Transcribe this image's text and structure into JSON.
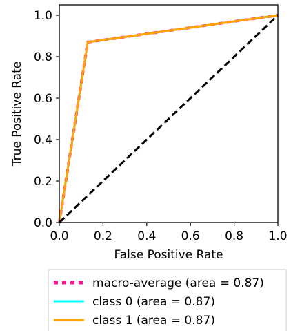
{
  "chart_data": {
    "type": "line",
    "title": "",
    "xlabel": "False Positive Rate",
    "ylabel": "True Positive Rate",
    "xlim": [
      0.0,
      1.0
    ],
    "ylim": [
      0.0,
      1.05
    ],
    "xticks": [
      0.0,
      0.2,
      0.4,
      0.6,
      0.8,
      1.0
    ],
    "yticks": [
      0.0,
      0.2,
      0.4,
      0.6,
      0.8,
      1.0
    ],
    "xtick_labels": [
      "0.0",
      "0.2",
      "0.4",
      "0.6",
      "0.8",
      "1.0"
    ],
    "ytick_labels": [
      "0.0",
      "0.2",
      "0.4",
      "0.6",
      "0.8",
      "1.0"
    ],
    "grid": false,
    "legend_position": "below",
    "series": [
      {
        "name": "macro-average (area = 0.87)",
        "color": "#ff1493",
        "style": "dotted",
        "x": [
          0.0,
          0.13,
          1.0
        ],
        "y": [
          0.0,
          0.87,
          1.0
        ]
      },
      {
        "name": "class 0 (area = 0.87)",
        "color": "#00ffff",
        "style": "solid",
        "x": [
          0.0,
          0.13,
          1.0
        ],
        "y": [
          0.0,
          0.87,
          1.0
        ]
      },
      {
        "name": "class 1 (area = 0.87)",
        "color": "#ffa500",
        "style": "solid",
        "x": [
          0.0,
          0.13,
          1.0
        ],
        "y": [
          0.0,
          0.87,
          1.0
        ]
      }
    ],
    "reference_line": {
      "color": "#000000",
      "style": "dashed",
      "x": [
        0.0,
        1.0
      ],
      "y": [
        0.0,
        1.0
      ]
    }
  }
}
